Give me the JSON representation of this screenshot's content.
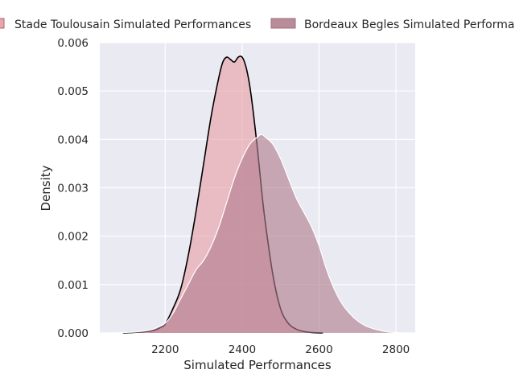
{
  "chart_data": {
    "type": "area",
    "title": "",
    "xlabel": "Simulated Performances",
    "ylabel": "Density",
    "xlim": [
      2030,
      2850
    ],
    "ylim": [
      0,
      0.006
    ],
    "x_ticks": [
      2200,
      2400,
      2600,
      2800
    ],
    "x_tick_labels": [
      "2200",
      "2400",
      "2600",
      "2800"
    ],
    "y_ticks": [
      0,
      0.001,
      0.002,
      0.003,
      0.004,
      0.005,
      0.006
    ],
    "y_tick_labels": [
      "0.000",
      "0.001",
      "0.002",
      "0.003",
      "0.004",
      "0.005",
      "0.006"
    ],
    "grid": true,
    "legend_position": "top",
    "series": [
      {
        "name": "Stade Toulousain Simulated Performances",
        "fill": "#e8a0a8",
        "fill_opacity": 0.62,
        "edge": "#000000",
        "x": [
          2090,
          2140,
          2170,
          2190,
          2200,
          2220,
          2240,
          2260,
          2280,
          2300,
          2320,
          2340,
          2350,
          2360,
          2370,
          2380,
          2390,
          2400,
          2410,
          2420,
          2430,
          2440,
          2450,
          2460,
          2480,
          2500,
          2520,
          2540,
          2560,
          2580,
          2610
        ],
        "y": [
          0,
          2e-05,
          5e-05,
          0.00012,
          0.00018,
          0.0005,
          0.0009,
          0.0016,
          0.0025,
          0.0035,
          0.0045,
          0.0053,
          0.0056,
          0.0057,
          0.00565,
          0.0056,
          0.0057,
          0.0057,
          0.0055,
          0.0051,
          0.0045,
          0.0038,
          0.003,
          0.0023,
          0.0012,
          0.0005,
          0.0002,
          8e-05,
          3e-05,
          1e-05,
          0
        ]
      },
      {
        "name": "Bordeaux Begles Simulated Performances",
        "fill": "#b07c8c",
        "fill_opacity": 0.62,
        "edge": "#ffffff",
        "x": [
          2060,
          2120,
          2160,
          2180,
          2200,
          2220,
          2240,
          2260,
          2280,
          2300,
          2320,
          2340,
          2360,
          2380,
          2400,
          2420,
          2440,
          2450,
          2460,
          2480,
          2500,
          2520,
          2540,
          2560,
          2580,
          2600,
          2620,
          2640,
          2660,
          2680,
          2700,
          2720,
          2740,
          2760,
          2780,
          2800,
          2820
        ],
        "y": [
          0,
          2e-05,
          6e-05,
          0.00012,
          0.0002,
          0.0004,
          0.0007,
          0.001,
          0.0013,
          0.0015,
          0.0018,
          0.0022,
          0.0027,
          0.0032,
          0.0036,
          0.0039,
          0.00405,
          0.0041,
          0.00405,
          0.0039,
          0.0036,
          0.0032,
          0.0028,
          0.0025,
          0.0022,
          0.0018,
          0.0013,
          0.0009,
          0.0006,
          0.0004,
          0.00025,
          0.00015,
          9e-05,
          5e-05,
          2e-05,
          1e-05,
          0
        ]
      }
    ]
  }
}
